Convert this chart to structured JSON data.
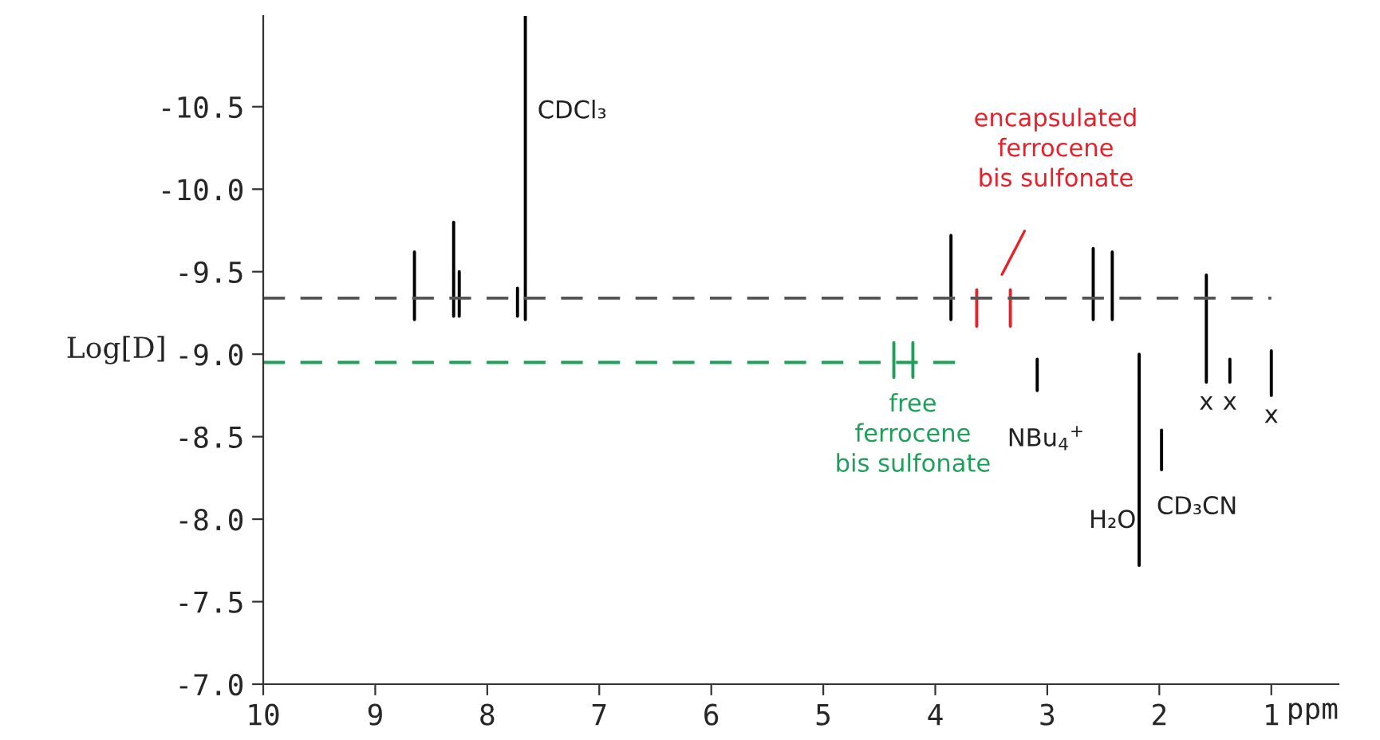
{
  "chart_data": {
    "type": "line",
    "xlabel": "ppm",
    "ylabel": "Log[D]",
    "xlim": [
      10,
      0.4
    ],
    "xticks": [
      10,
      9,
      8,
      7,
      6,
      5,
      4,
      3,
      2,
      1
    ],
    "ylim": [
      -7.0,
      -11.05
    ],
    "yticks": [
      {
        "value": -7,
        "label": "-7.0"
      },
      -7.5,
      {
        "value": -8,
        "label": "-8.0"
      },
      -8.5,
      {
        "value": -9,
        "label": "-9.0"
      },
      -9.5,
      {
        "value": -10,
        "label": "-10.0"
      },
      -10.5
    ],
    "grid": false,
    "legend": false,
    "marker": "none",
    "series": [
      {
        "color": "#000000",
        "line_style": "solid",
        "x": [
          8.65,
          8.65,
          null,
          8.3,
          8.3,
          null,
          8.25,
          8.25,
          null,
          7.73,
          7.73,
          null,
          7.66,
          7.66,
          null,
          3.86,
          3.86,
          null,
          3.09,
          3.09,
          null,
          2.59,
          2.59,
          null,
          2.42,
          2.42,
          null,
          2.18,
          2.18,
          null,
          1.98,
          1.98,
          null,
          1.58,
          1.58,
          null,
          1.37,
          1.37,
          null,
          1.0,
          1.0
        ],
        "values": [
          -9.62,
          -9.21,
          null,
          -9.8,
          -9.23,
          null,
          -9.5,
          -9.23,
          null,
          -9.4,
          -9.23,
          null,
          -11.05,
          -9.21,
          null,
          -9.72,
          -9.21,
          null,
          -8.97,
          -8.78,
          null,
          -9.64,
          -9.21,
          null,
          -9.62,
          -9.21,
          null,
          -9.0,
          -7.72,
          null,
          -8.54,
          -8.3,
          null,
          -9.48,
          -8.83,
          null,
          -8.97,
          -8.83,
          null,
          -9.02,
          -8.75
        ]
      },
      {
        "color": "#e8202a",
        "line_style": "solid",
        "x": [
          3.63,
          3.63,
          null,
          3.33,
          3.33
        ],
        "values": [
          -9.39,
          -9.17,
          null,
          -9.39,
          -9.17
        ]
      },
      {
        "color": "#1fa05a",
        "line_style": "solid",
        "x": [
          4.37,
          4.37,
          null,
          4.2,
          4.2
        ],
        "values": [
          -9.07,
          -8.86,
          null,
          -9.07,
          -8.86
        ]
      },
      {
        "color": "#555555",
        "line_style": "dashed",
        "x": [
          10,
          1.0
        ],
        "values": [
          -9.34,
          -9.34
        ]
      },
      {
        "color": "#1fa05a",
        "line_style": "dashed",
        "x": [
          10,
          3.8
        ],
        "values": [
          -8.95,
          -8.95
        ]
      }
    ],
    "annotations": [
      "CDCl₃",
      "encapsulated\nferrocene\nbis sulfonate",
      {
        "text": "free\nferrocene\nbis sulfonate",
        "x": 4.2,
        "y": -8.86
      },
      {
        "text": "x",
        "x": 1.58,
        "y": -8.83
      },
      {
        "text": "x",
        "x": 1.37,
        "y": -8.83
      },
      {
        "text": "x",
        "x": 1.0,
        "y": -8.75
      },
      {
        "text": "NBu$_{4}$$^{+}$",
        "x": 3.09,
        "y": -8.78
      },
      {
        "text": "H₂O",
        "x": 2.18,
        "y": -7.72
      },
      {
        "text": "CD₃CN",
        "x": 1.98,
        "y": -8.3
      }
    ]
  }
}
